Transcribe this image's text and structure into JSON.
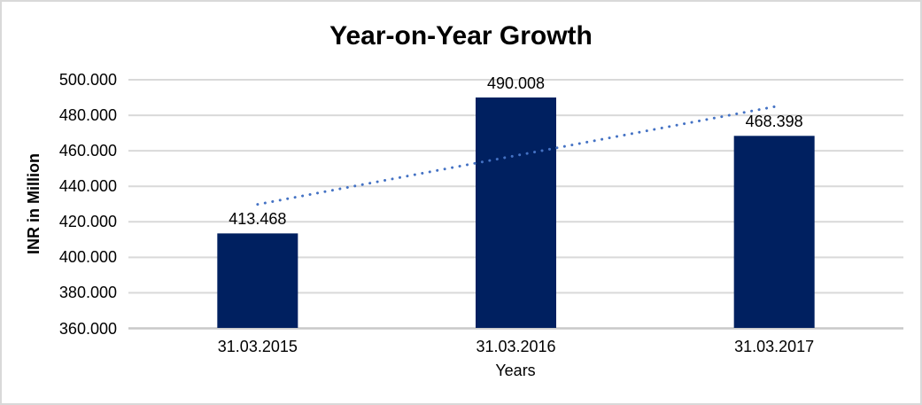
{
  "chart_data": {
    "type": "bar",
    "title": "Year-on-Year Growth",
    "xlabel": "Years",
    "ylabel": "INR in Million",
    "categories": [
      "31.03.2015",
      "31.03.2016",
      "31.03.2017"
    ],
    "values": [
      413.468,
      490.008,
      468.398
    ],
    "data_labels": [
      "413.468",
      "490.008",
      "468.398"
    ],
    "tick_values": [
      360,
      380,
      400,
      420,
      440,
      460,
      480,
      500
    ],
    "tick_labels": [
      "360.000",
      "380.000",
      "400.000",
      "420.000",
      "440.000",
      "460.000",
      "480.000",
      "500.000"
    ],
    "ylim": [
      360,
      500
    ],
    "grid": "horizontal-on",
    "legend_position": "none",
    "trendline": {
      "style": "dotted",
      "start_value": 429.8,
      "end_value": 484.8,
      "color": "#4472c4"
    },
    "colors": {
      "bar": "#002060",
      "trendline": "#4472c4",
      "gridline": "#d9d9d9",
      "axis_line": "#c9c9c9",
      "text": "#000000",
      "border": "#d9d9d9",
      "background": "#ffffff"
    }
  }
}
